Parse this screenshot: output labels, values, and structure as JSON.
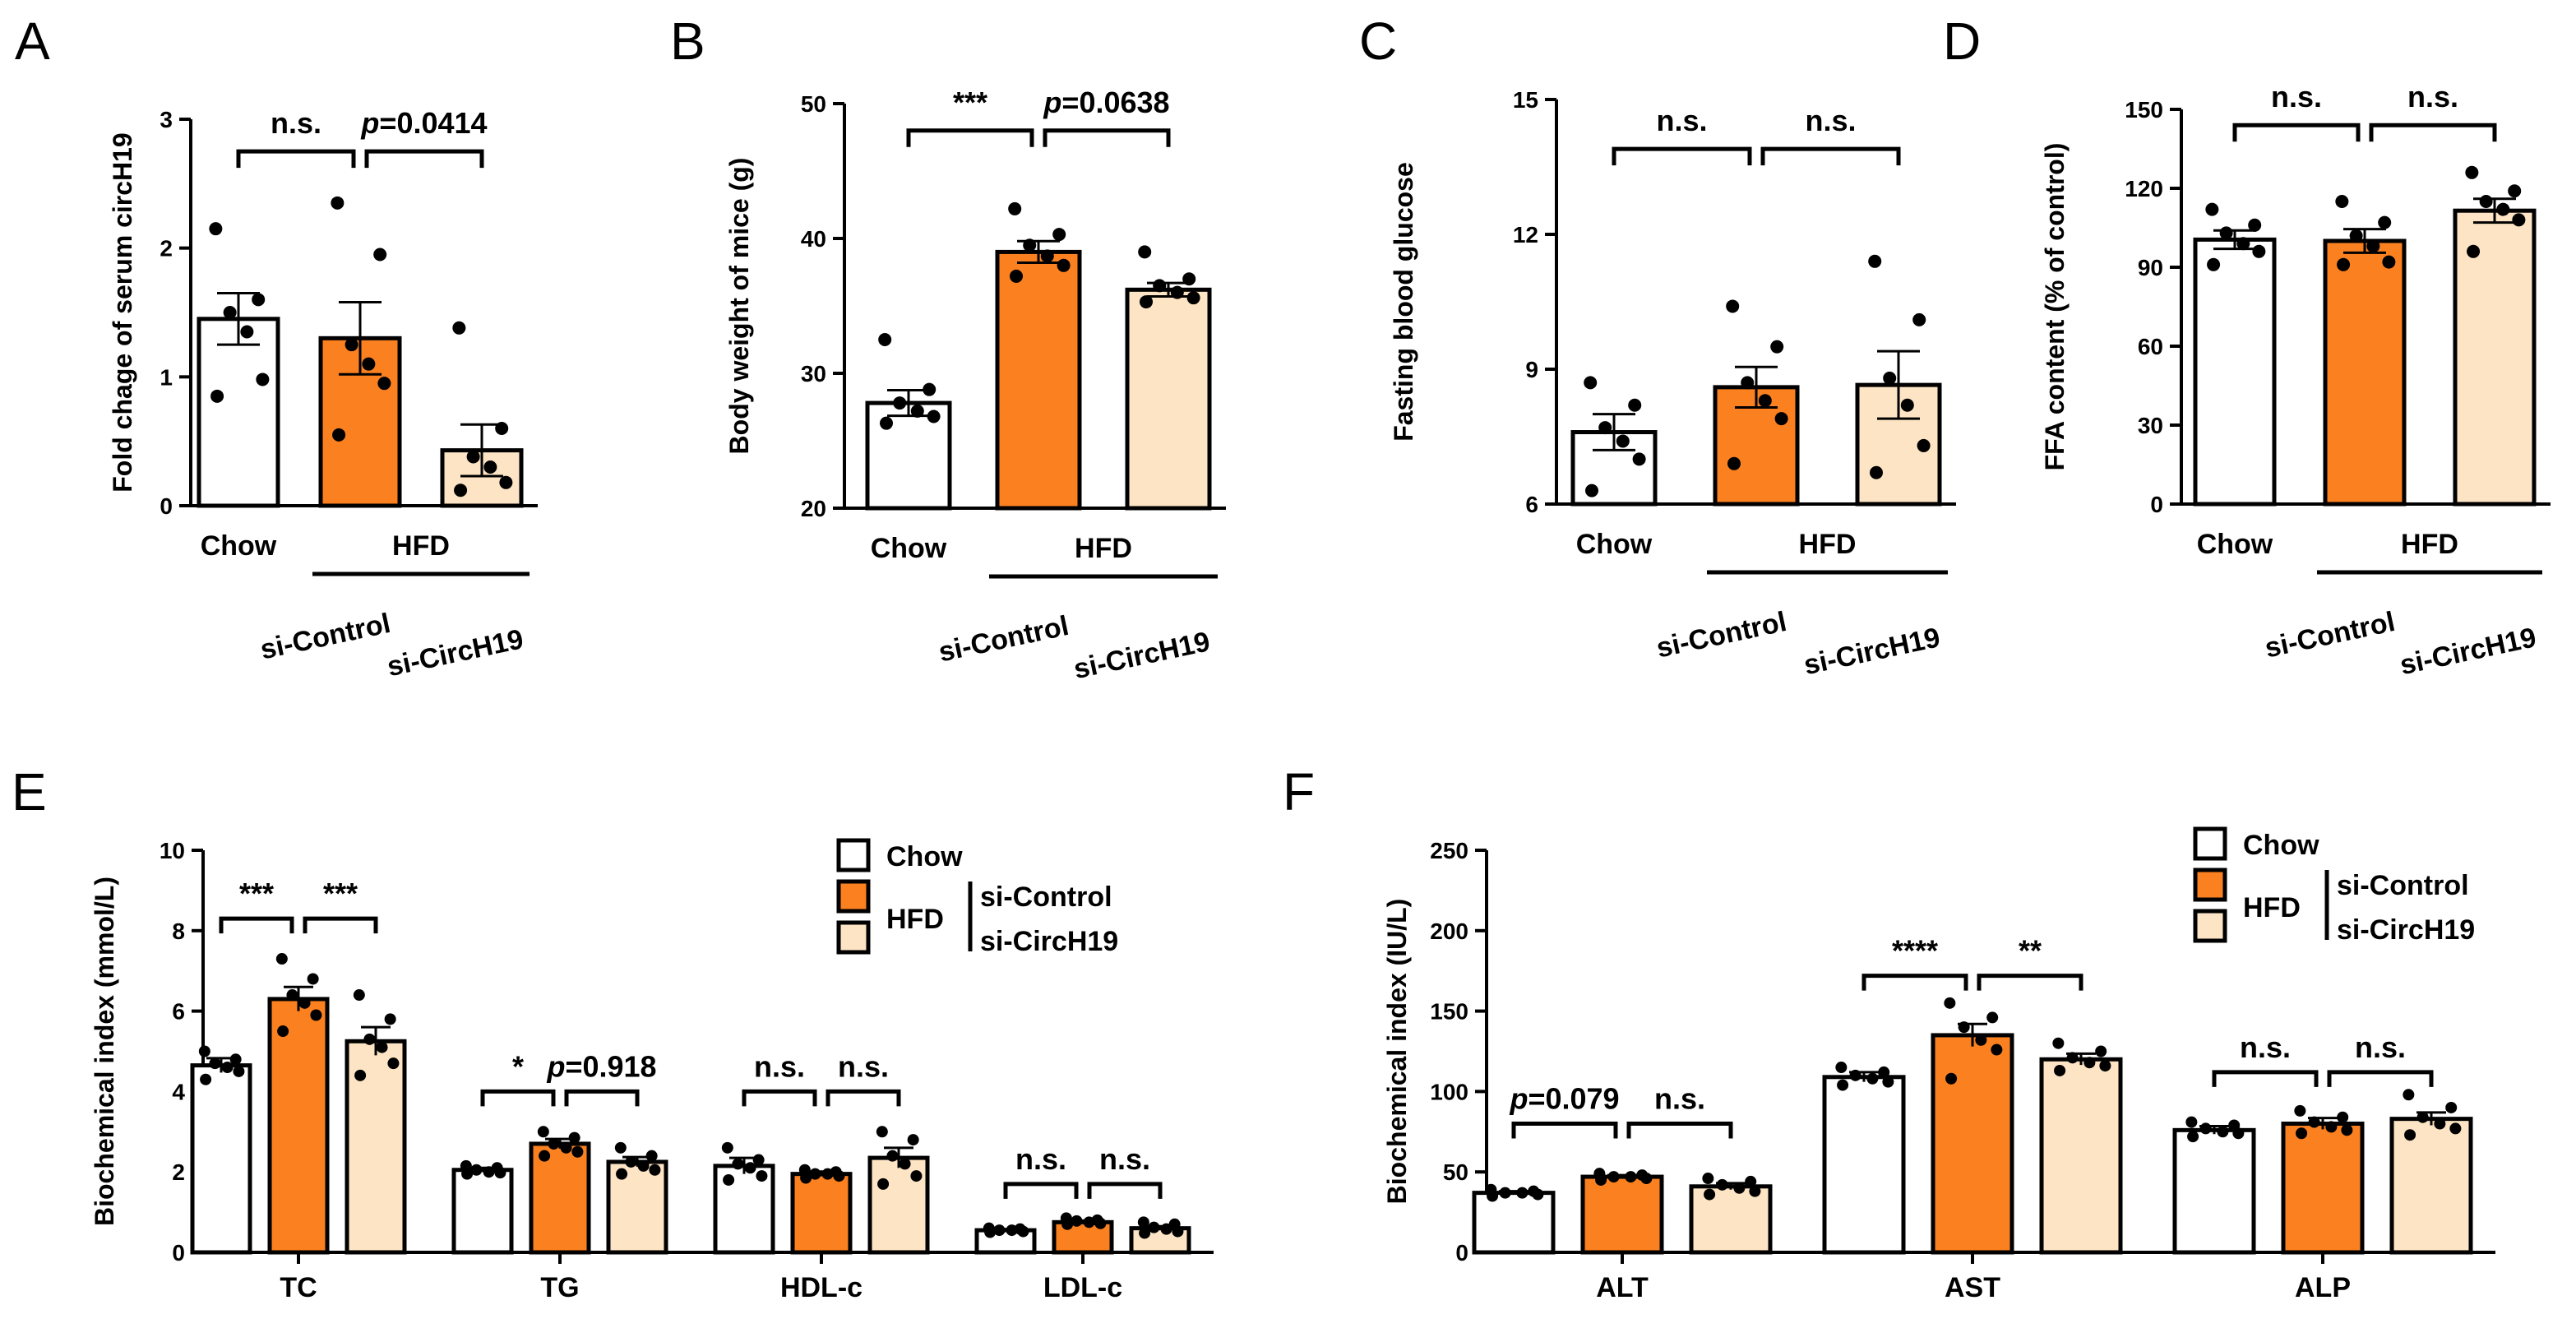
{
  "colors": {
    "chow": "#ffffff",
    "si_control": "#fb8020",
    "si_circh19": "#fde4c4",
    "ink": "#000000"
  },
  "legend": {
    "chow": "Chow",
    "hfd": "HFD",
    "si_control": "si-Control",
    "si_circh19": "si-CircH19"
  },
  "chart_data": [
    {
      "panel": "A",
      "type": "bar",
      "ylabel": "Fold chage of serum circH19",
      "ylim": [
        0,
        3
      ],
      "yticks": [
        0,
        1,
        2,
        3
      ],
      "groups": [
        {
          "label": "Chow",
          "mean": 1.45,
          "sem": 0.2,
          "points": [
            2.15,
            1.6,
            1.5,
            1.35,
            0.98,
            0.85
          ]
        },
        {
          "label": "si-Control",
          "mean": 1.3,
          "sem": 0.28,
          "points": [
            2.35,
            1.95,
            1.25,
            1.1,
            0.95,
            0.55
          ]
        },
        {
          "label": "si-CircH19",
          "mean": 0.43,
          "sem": 0.2,
          "points": [
            1.38,
            0.6,
            0.38,
            0.3,
            0.18,
            0.12
          ]
        }
      ],
      "xlabels": [
        "Chow",
        "si-Control",
        "si-CircH19"
      ],
      "group_label": "HFD",
      "comparisons": [
        {
          "a": 0,
          "b": 1,
          "label": "n.s.",
          "y": 2.75
        },
        {
          "a": 1,
          "b": 2,
          "label": "p=0.0414",
          "y": 2.75
        }
      ]
    },
    {
      "panel": "B",
      "type": "bar",
      "ylabel": "Body weight of mice (g)",
      "ylim": [
        20,
        50
      ],
      "yticks": [
        20,
        30,
        40,
        50
      ],
      "groups": [
        {
          "label": "Chow",
          "mean": 27.8,
          "sem": 0.95,
          "points": [
            32.5,
            28.8,
            27.8,
            27.2,
            26.8,
            26.3
          ]
        },
        {
          "label": "si-Control",
          "mean": 39.0,
          "sem": 0.8,
          "points": [
            42.2,
            40.3,
            39.5,
            38.7,
            38.0,
            37.2
          ]
        },
        {
          "label": "si-CircH19",
          "mean": 36.2,
          "sem": 0.5,
          "points": [
            39.0,
            37.0,
            36.5,
            36.0,
            35.6,
            35.3
          ]
        }
      ],
      "xlabels": [
        "Chow",
        "si-Control",
        "si-CircH19"
      ],
      "group_label": "HFD",
      "comparisons": [
        {
          "a": 0,
          "b": 1,
          "label": "***",
          "y": 48.0
        },
        {
          "a": 1,
          "b": 2,
          "label": "p=0.0638",
          "y": 48.0
        }
      ]
    },
    {
      "panel": "C",
      "type": "bar",
      "ylabel": "Fasting blood glucose",
      "ylim": [
        6,
        15
      ],
      "yticks": [
        6,
        9,
        12,
        15
      ],
      "groups": [
        {
          "label": "Chow",
          "mean": 7.6,
          "sem": 0.4,
          "points": [
            8.7,
            8.2,
            7.7,
            7.4,
            7.0,
            6.3
          ]
        },
        {
          "label": "si-Control",
          "mean": 8.6,
          "sem": 0.45,
          "points": [
            10.4,
            9.5,
            8.7,
            8.3,
            7.9,
            6.9
          ]
        },
        {
          "label": "si-CircH19",
          "mean": 8.65,
          "sem": 0.75,
          "points": [
            11.4,
            10.1,
            8.8,
            8.2,
            7.3,
            6.7
          ]
        }
      ],
      "xlabels": [
        "Chow",
        "si-Control",
        "si-CircH19"
      ],
      "group_label": "HFD",
      "comparisons": [
        {
          "a": 0,
          "b": 1,
          "label": "n.s.",
          "y": 13.9
        },
        {
          "a": 1,
          "b": 2,
          "label": "n.s.",
          "y": 13.9
        }
      ]
    },
    {
      "panel": "D",
      "type": "bar",
      "ylabel": "FFA content (% of control)",
      "ylim": [
        0,
        150
      ],
      "yticks": [
        0,
        30,
        60,
        90,
        120,
        150
      ],
      "groups": [
        {
          "label": "Chow",
          "mean": 100.5,
          "sem": 3.5,
          "points": [
            112,
            106,
            103,
            99,
            96,
            91
          ]
        },
        {
          "label": "si-Control",
          "mean": 100.0,
          "sem": 4.5,
          "points": [
            115,
            107,
            102,
            98,
            92,
            91
          ]
        },
        {
          "label": "si-CircH19",
          "mean": 111.5,
          "sem": 4.5,
          "points": [
            126,
            119,
            115,
            112,
            108,
            96
          ]
        }
      ],
      "xlabels": [
        "Chow",
        "si-Control",
        "si-CircH19"
      ],
      "group_label": "HFD",
      "comparisons": [
        {
          "a": 0,
          "b": 1,
          "label": "n.s.",
          "y": 144
        },
        {
          "a": 1,
          "b": 2,
          "label": "n.s.",
          "y": 144
        }
      ]
    },
    {
      "panel": "E",
      "type": "bar",
      "ylabel": "Biochemical index (mmol/L)",
      "ylim": [
        0,
        10
      ],
      "yticks": [
        0,
        2,
        4,
        6,
        8,
        10
      ],
      "categories": [
        "TC",
        "TG",
        "HDL-c",
        "LDL-c"
      ],
      "series": [
        {
          "name": "Chow",
          "values": [
            4.65,
            2.05,
            2.15,
            0.55
          ],
          "sem": [
            0.18,
            0.05,
            0.2,
            0.03
          ],
          "points": [
            [
              5.0,
              4.8,
              4.7,
              4.6,
              4.5,
              4.3
            ],
            [
              2.15,
              2.1,
              2.05,
              2.0,
              1.98,
              1.95
            ],
            [
              2.6,
              2.3,
              2.2,
              2.1,
              1.9,
              1.8
            ],
            [
              0.6,
              0.58,
              0.55,
              0.55,
              0.52,
              0.5
            ]
          ]
        },
        {
          "name": "si-Control",
          "values": [
            6.3,
            2.7,
            1.95,
            0.75
          ],
          "sem": [
            0.3,
            0.12,
            0.06,
            0.04
          ],
          "points": [
            [
              7.3,
              6.8,
              6.4,
              6.2,
              5.9,
              5.5
            ],
            [
              3.0,
              2.85,
              2.7,
              2.6,
              2.5,
              2.4
            ],
            [
              2.05,
              2.0,
              1.95,
              1.95,
              1.9,
              1.85
            ],
            [
              0.85,
              0.8,
              0.78,
              0.75,
              0.72,
              0.7
            ]
          ]
        },
        {
          "name": "si-CircH19",
          "values": [
            5.25,
            2.25,
            2.35,
            0.6
          ],
          "sem": [
            0.35,
            0.12,
            0.25,
            0.05
          ],
          "points": [
            [
              6.4,
              5.8,
              5.3,
              5.1,
              4.7,
              4.4
            ],
            [
              2.6,
              2.4,
              2.25,
              2.15,
              2.05,
              1.95
            ],
            [
              3.0,
              2.8,
              2.4,
              2.2,
              1.9,
              1.7
            ],
            [
              0.75,
              0.7,
              0.62,
              0.58,
              0.52,
              0.48
            ]
          ]
        }
      ],
      "comparisons": [
        {
          "cat": 0,
          "a": 0,
          "b": 1,
          "label": "***",
          "y": 8.3
        },
        {
          "cat": 0,
          "a": 1,
          "b": 2,
          "label": "***",
          "y": 8.3
        },
        {
          "cat": 1,
          "a": 0,
          "b": 1,
          "label": "*",
          "y": 4.0
        },
        {
          "cat": 1,
          "a": 1,
          "b": 2,
          "label": "p=0.918",
          "y": 4.0
        },
        {
          "cat": 2,
          "a": 0,
          "b": 1,
          "label": "n.s.",
          "y": 4.0
        },
        {
          "cat": 2,
          "a": 1,
          "b": 2,
          "label": "n.s.",
          "y": 4.0
        },
        {
          "cat": 3,
          "a": 0,
          "b": 1,
          "label": "n.s.",
          "y": 1.7
        },
        {
          "cat": 3,
          "a": 1,
          "b": 2,
          "label": "n.s.",
          "y": 1.7
        }
      ]
    },
    {
      "panel": "F",
      "type": "bar",
      "ylabel": "Biochemical index (IU/L)",
      "ylim": [
        0,
        250
      ],
      "yticks": [
        0,
        50,
        100,
        150,
        200,
        250
      ],
      "categories": [
        "ALT",
        "AST",
        "ALP"
      ],
      "series": [
        {
          "name": "Chow",
          "values": [
            37,
            109,
            76
          ],
          "sem": [
            1.0,
            3.0,
            2.5
          ],
          "points": [
            [
              39,
              38,
              37,
              37,
              36,
              35
            ],
            [
              115,
              112,
              110,
              108,
              106,
              104
            ],
            [
              81,
              79,
              77,
              75,
              74,
              72
            ]
          ]
        },
        {
          "name": "si-Control",
          "values": [
            47,
            135,
            80
          ],
          "sem": [
            1.0,
            7.0,
            3.5
          ],
          "points": [
            [
              49,
              48,
              47,
              47,
              46,
              45
            ],
            [
              155,
              146,
              140,
              132,
              126,
              108
            ],
            [
              88,
              84,
              81,
              78,
              76,
              74
            ]
          ]
        },
        {
          "name": "si-CircH19",
          "values": [
            41,
            120,
            83
          ],
          "sem": [
            2.0,
            3.5,
            4.0
          ],
          "points": [
            [
              46,
              44,
              42,
              40,
              38,
              36
            ],
            [
              130,
              125,
              121,
              118,
              116,
              113
            ],
            [
              98,
              90,
              84,
              80,
              77,
              73
            ]
          ]
        }
      ],
      "comparisons": [
        {
          "cat": 0,
          "a": 0,
          "b": 1,
          "label": "p=0.079",
          "y": 80
        },
        {
          "cat": 0,
          "a": 1,
          "b": 2,
          "label": "n.s.",
          "y": 80
        },
        {
          "cat": 1,
          "a": 0,
          "b": 1,
          "label": "****",
          "y": 172
        },
        {
          "cat": 1,
          "a": 1,
          "b": 2,
          "label": "**",
          "y": 172
        },
        {
          "cat": 2,
          "a": 0,
          "b": 1,
          "label": "n.s.",
          "y": 112
        },
        {
          "cat": 2,
          "a": 1,
          "b": 2,
          "label": "n.s.",
          "y": 112
        }
      ]
    }
  ]
}
